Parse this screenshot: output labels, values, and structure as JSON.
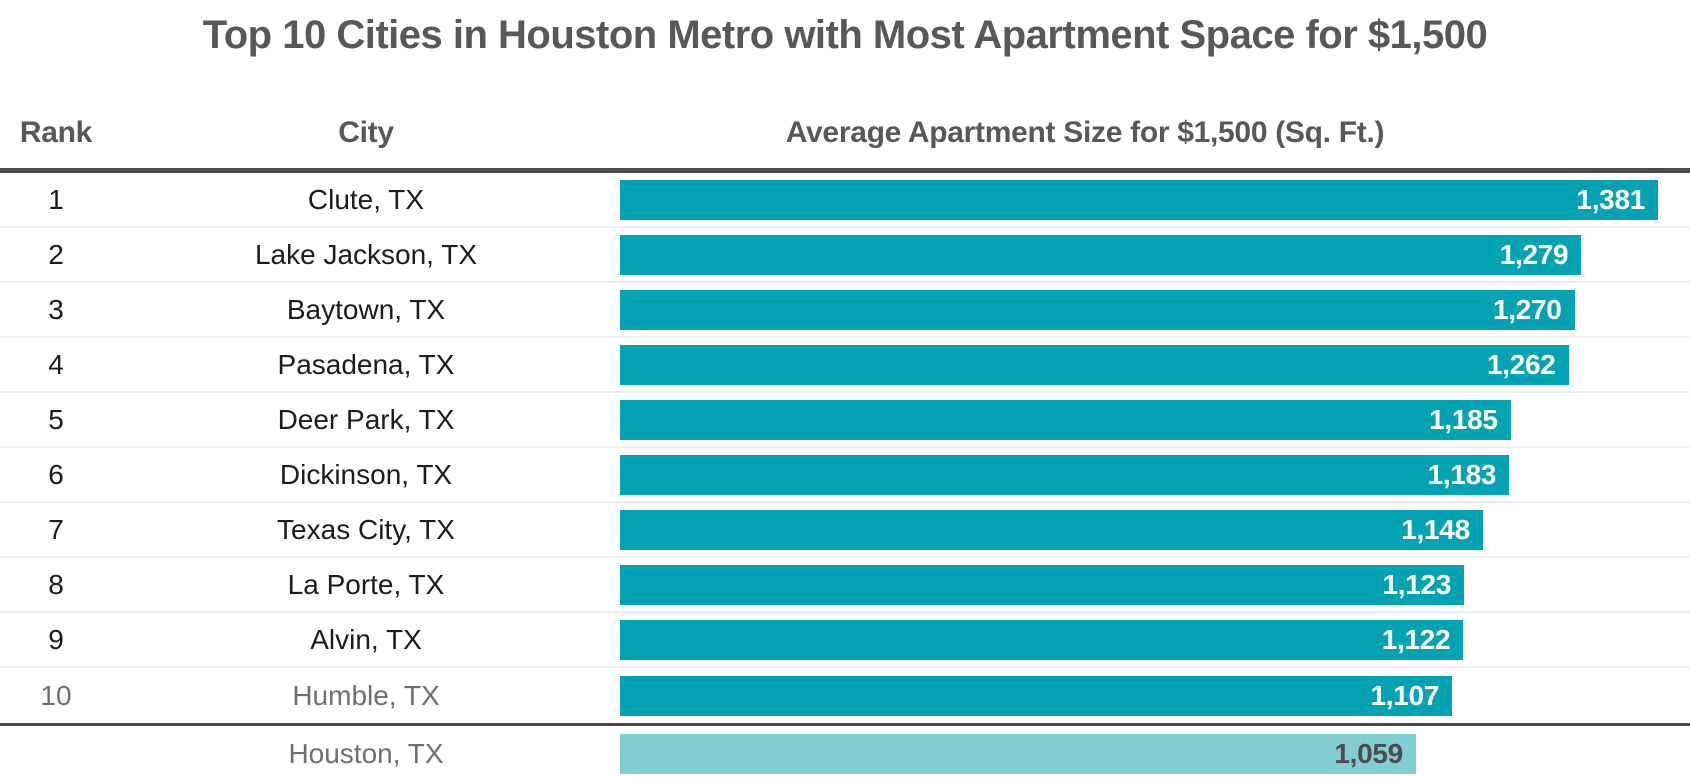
{
  "page_title": "Top 10 Cities in Houston Metro with Most Apartment Space for $1,500",
  "chart_data": {
    "type": "bar",
    "orientation": "horizontal",
    "title": "Top 10 Cities in Houston Metro with Most Apartment Space for $1,500",
    "columns": [
      {
        "key": "rank",
        "label": "Rank"
      },
      {
        "key": "city",
        "label": "City"
      },
      {
        "key": "value",
        "label": "Average Apartment Size for $1,500 (Sq. Ft.)"
      }
    ],
    "value_axis": {
      "min": 0,
      "max_bar_value": 1381,
      "units": "Sq. Ft."
    },
    "rows": [
      {
        "rank": "1",
        "city": "Clute, TX",
        "value": 1381,
        "value_label": "1,381",
        "muted": false,
        "highlight": false
      },
      {
        "rank": "2",
        "city": "Lake Jackson, TX",
        "value": 1279,
        "value_label": "1,279",
        "muted": false,
        "highlight": false
      },
      {
        "rank": "3",
        "city": "Baytown, TX",
        "value": 1270,
        "value_label": "1,270",
        "muted": false,
        "highlight": false
      },
      {
        "rank": "4",
        "city": "Pasadena, TX",
        "value": 1262,
        "value_label": "1,262",
        "muted": false,
        "highlight": false
      },
      {
        "rank": "5",
        "city": "Deer Park, TX",
        "value": 1185,
        "value_label": "1,185",
        "muted": false,
        "highlight": false
      },
      {
        "rank": "6",
        "city": "Dickinson, TX",
        "value": 1183,
        "value_label": "1,183",
        "muted": false,
        "highlight": false
      },
      {
        "rank": "7",
        "city": "Texas City, TX",
        "value": 1148,
        "value_label": "1,148",
        "muted": false,
        "highlight": false
      },
      {
        "rank": "8",
        "city": "La Porte, TX",
        "value": 1123,
        "value_label": "1,123",
        "muted": false,
        "highlight": false
      },
      {
        "rank": "9",
        "city": "Alvin, TX",
        "value": 1122,
        "value_label": "1,122",
        "muted": false,
        "highlight": false
      },
      {
        "rank": "10",
        "city": "Humble, TX",
        "value": 1107,
        "value_label": "1,107",
        "muted": true,
        "highlight": false
      },
      {
        "rank": "",
        "city": "Houston, TX",
        "value": 1059,
        "value_label": "1,059",
        "muted": true,
        "highlight": true
      }
    ],
    "colors": {
      "bar": "#04a3b4",
      "highlight_bar": "#82cdd2",
      "bar_value_text": "#ffffff",
      "highlight_value_text": "#4c4c4f",
      "heading_text": "#58585b",
      "row_text": "#1c1c1e",
      "muted_row_text": "#6f6f71",
      "rule_dark": "#4a4a4c",
      "rule_light": "#ececec"
    }
  }
}
